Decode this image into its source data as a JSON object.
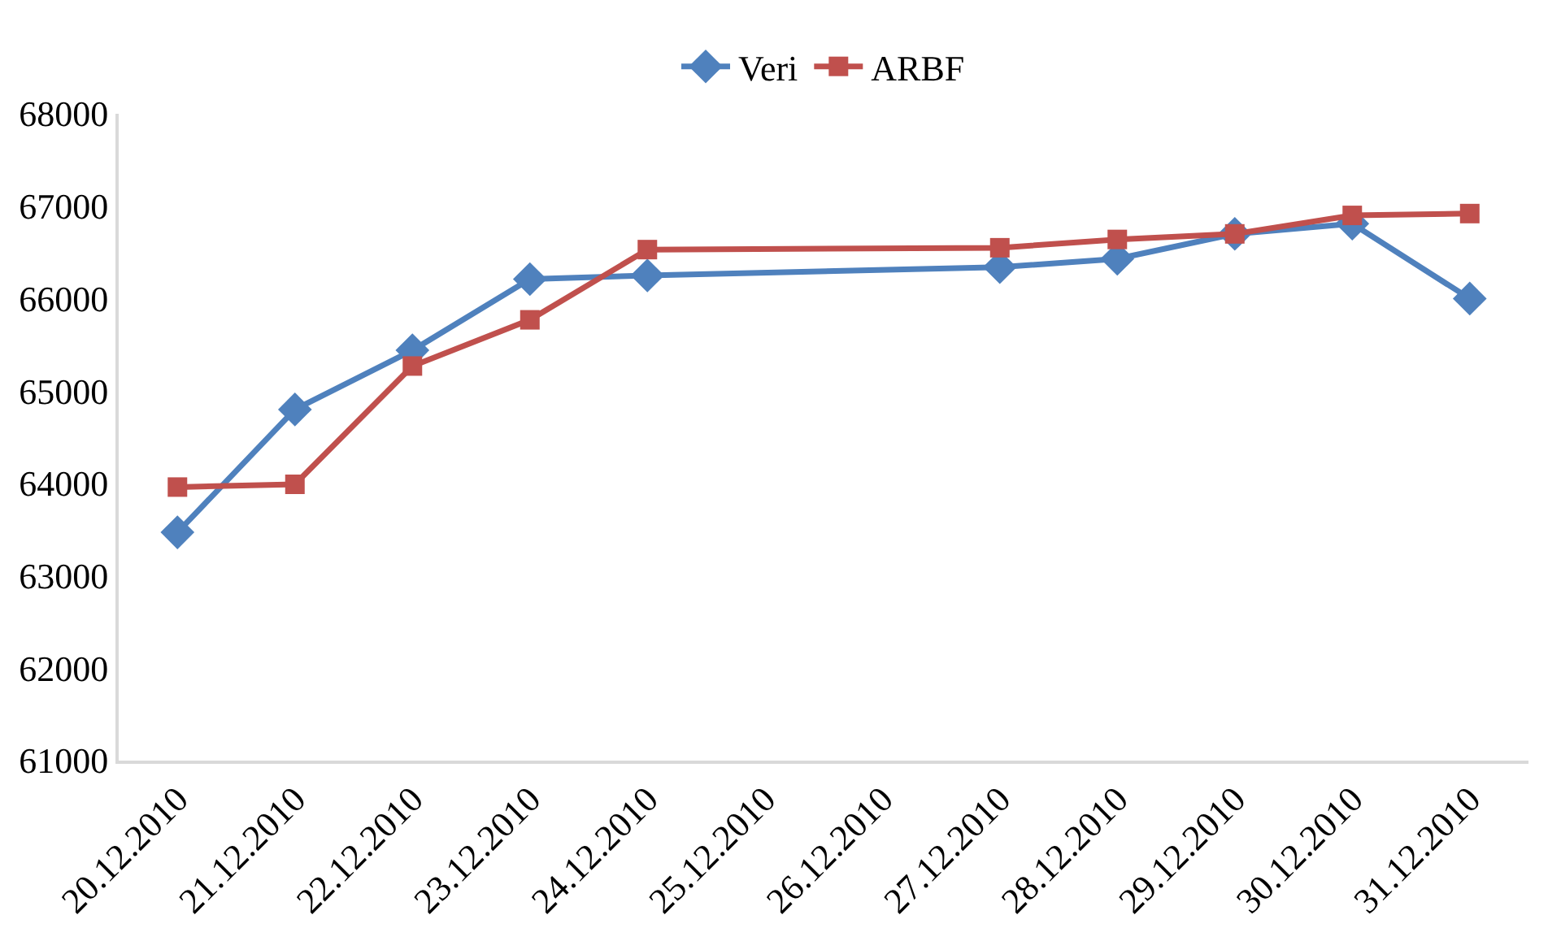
{
  "chart_data": {
    "type": "line",
    "x": [
      "2010-12-20",
      "2010-12-21",
      "2010-12-22",
      "2010-12-23",
      "2010-12-24",
      "2010-12-27",
      "2010-12-28",
      "2010-12-29",
      "2010-12-30",
      "2010-12-31"
    ],
    "series": [
      {
        "name": "Veri",
        "color": "#4f81bd",
        "marker": "diamond",
        "values": [
          63470,
          64800,
          65440,
          66210,
          66250,
          66340,
          66430,
          66700,
          66810,
          66000
        ]
      },
      {
        "name": "ARBF",
        "color": "#c0504d",
        "marker": "square",
        "values": [
          63960,
          63990,
          65270,
          65770,
          66530,
          66550,
          66640,
          66700,
          66900,
          66920
        ]
      }
    ],
    "xlim": [
      "2010-12-19T12:00",
      "2010-12-31T12:00"
    ],
    "xticks": [
      {
        "value": "2010-12-20",
        "label": "20.12.2010"
      },
      {
        "value": "2010-12-21",
        "label": "21.12.2010"
      },
      {
        "value": "2010-12-22",
        "label": "22.12.2010"
      },
      {
        "value": "2010-12-23",
        "label": "23.12.2010"
      },
      {
        "value": "2010-12-24",
        "label": "24.12.2010"
      },
      {
        "value": "2010-12-25",
        "label": "25.12.2010"
      },
      {
        "value": "2010-12-26",
        "label": "26.12.2010"
      },
      {
        "value": "2010-12-27",
        "label": "27.12.2010"
      },
      {
        "value": "2010-12-28",
        "label": "28.12.2010"
      },
      {
        "value": "2010-12-29",
        "label": "29.12.2010"
      },
      {
        "value": "2010-12-30",
        "label": "30.12.2010"
      },
      {
        "value": "2010-12-31",
        "label": "31.12.2010"
      }
    ],
    "ylim": [
      61000,
      68000
    ],
    "yticks": [
      61000,
      62000,
      63000,
      64000,
      65000,
      66000,
      67000,
      68000
    ],
    "grid": false,
    "legend": "top",
    "line_style": "solid"
  }
}
